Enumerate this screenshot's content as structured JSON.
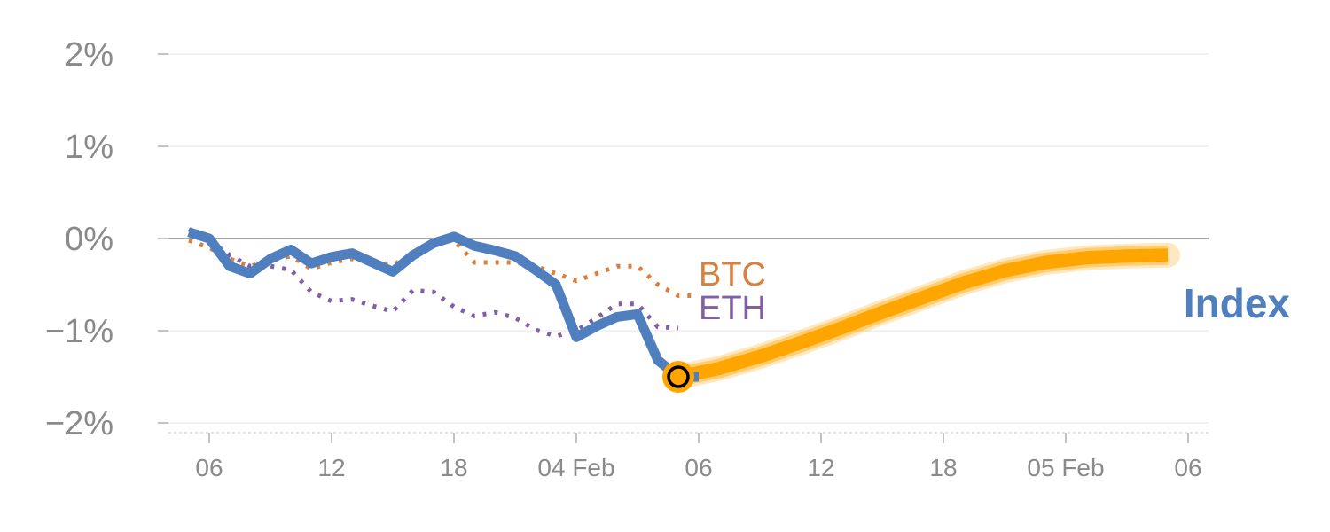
{
  "chart_data": {
    "type": "line",
    "title": "",
    "xlabel": "",
    "ylabel": "",
    "ylim": [
      -2.1,
      2.1
    ],
    "y_ticks": [
      2,
      1,
      0,
      -1,
      -2
    ],
    "y_tick_labels": [
      "2%",
      "1%",
      "0%",
      "−1%",
      "−2%"
    ],
    "x_ticks": [
      {
        "t": 1,
        "label": "06"
      },
      {
        "t": 7,
        "label": "12"
      },
      {
        "t": 13,
        "label": "18"
      },
      {
        "t": 19,
        "label": "04 Feb"
      },
      {
        "t": 25,
        "label": "06"
      },
      {
        "t": 31,
        "label": "12"
      },
      {
        "t": 37,
        "label": "18"
      },
      {
        "t": 43,
        "label": "05 Feb"
      },
      {
        "t": 49,
        "label": "06"
      }
    ],
    "xlim": [
      -1,
      50
    ],
    "grid": true,
    "series": [
      {
        "name": "Index",
        "color": "#4f7fbf",
        "style": "solid",
        "x": [
          0,
          1,
          2,
          3,
          4,
          5,
          6,
          7,
          8,
          9,
          10,
          11,
          12,
          13,
          14,
          15,
          16,
          17,
          18,
          19,
          20,
          21,
          22,
          23,
          24,
          25
        ],
        "values": [
          0.07,
          0.0,
          -0.3,
          -0.38,
          -0.22,
          -0.12,
          -0.27,
          -0.2,
          -0.16,
          -0.26,
          -0.36,
          -0.18,
          -0.05,
          0.02,
          -0.08,
          -0.13,
          -0.19,
          -0.34,
          -0.5,
          -1.07,
          -0.95,
          -0.85,
          -0.82,
          -1.32,
          -1.5,
          -1.5
        ]
      },
      {
        "name": "BTC",
        "color": "#d9803d",
        "style": "dotted",
        "x": [
          0,
          1,
          2,
          3,
          4,
          5,
          6,
          7,
          8,
          9,
          10,
          11,
          12,
          13,
          14,
          15,
          16,
          17,
          18,
          19,
          20,
          21,
          22,
          23,
          24,
          25
        ],
        "values": [
          -0.02,
          -0.1,
          -0.22,
          -0.3,
          -0.24,
          -0.19,
          -0.33,
          -0.26,
          -0.22,
          -0.24,
          -0.29,
          -0.16,
          -0.05,
          -0.02,
          -0.26,
          -0.26,
          -0.26,
          -0.3,
          -0.38,
          -0.46,
          -0.38,
          -0.3,
          -0.3,
          -0.5,
          -0.62,
          -0.62
        ]
      },
      {
        "name": "ETH",
        "color": "#7f5fa6",
        "style": "dotted",
        "x": [
          0,
          1,
          2,
          3,
          4,
          5,
          6,
          7,
          8,
          9,
          10,
          11,
          12,
          13,
          14,
          15,
          16,
          17,
          18,
          19,
          20,
          21,
          22,
          23,
          24
        ],
        "values": [
          0.1,
          -0.02,
          -0.18,
          -0.3,
          -0.3,
          -0.34,
          -0.58,
          -0.68,
          -0.66,
          -0.73,
          -0.79,
          -0.56,
          -0.58,
          -0.74,
          -0.84,
          -0.8,
          -0.86,
          -0.99,
          -1.06,
          -1.0,
          -0.86,
          -0.71,
          -0.71,
          -0.96,
          -0.97
        ]
      }
    ],
    "forecast": {
      "name": "Index",
      "color": "#ffa500",
      "x": [
        24,
        26,
        28,
        30,
        32,
        34,
        36,
        38,
        40,
        42,
        44,
        46,
        48
      ],
      "values": [
        -1.5,
        -1.41,
        -1.28,
        -1.13,
        -0.97,
        -0.8,
        -0.64,
        -0.48,
        -0.35,
        -0.26,
        -0.21,
        -0.19,
        -0.18
      ]
    },
    "marker": {
      "x": 24,
      "y": -1.5,
      "fill": "#ffa500",
      "stroke": "#000000"
    },
    "legend_placement": "inline-right"
  }
}
